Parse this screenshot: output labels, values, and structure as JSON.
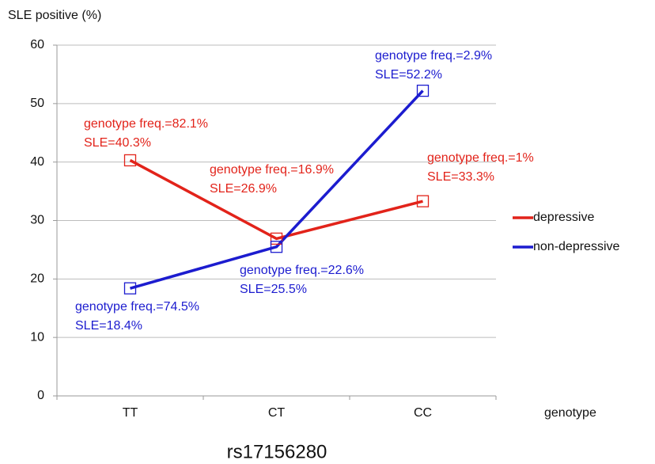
{
  "chart_data": {
    "type": "line",
    "y_label": "SLE positive (%)",
    "x_label": "genotype",
    "subtitle": "rs17156280",
    "categories": [
      "TT",
      "CT",
      "CC"
    ],
    "ylim": [
      0,
      60
    ],
    "yticks": [
      0,
      10,
      20,
      30,
      40,
      50,
      60
    ],
    "grid": true,
    "series": [
      {
        "name": "depressive",
        "color": "#e2231a",
        "values": [
          40.3,
          26.9,
          33.3
        ],
        "value_labels": [
          "SLE=40.3%",
          "SLE=26.9%",
          "SLE=33.3%"
        ],
        "annotations": [
          "genotype freq.=82.1%",
          "genotype freq.=16.9%",
          "genotype freq.=1%"
        ]
      },
      {
        "name": "non-depressive",
        "color": "#1c1ccf",
        "values": [
          18.4,
          25.5,
          52.2
        ],
        "value_labels": [
          "SLE=18.4%",
          "SLE=25.5%",
          "SLE=52.2%"
        ],
        "annotations": [
          "genotype freq.=74.5%",
          "genotype freq.=22.6%",
          "genotype freq.=2.9%"
        ]
      }
    ]
  }
}
